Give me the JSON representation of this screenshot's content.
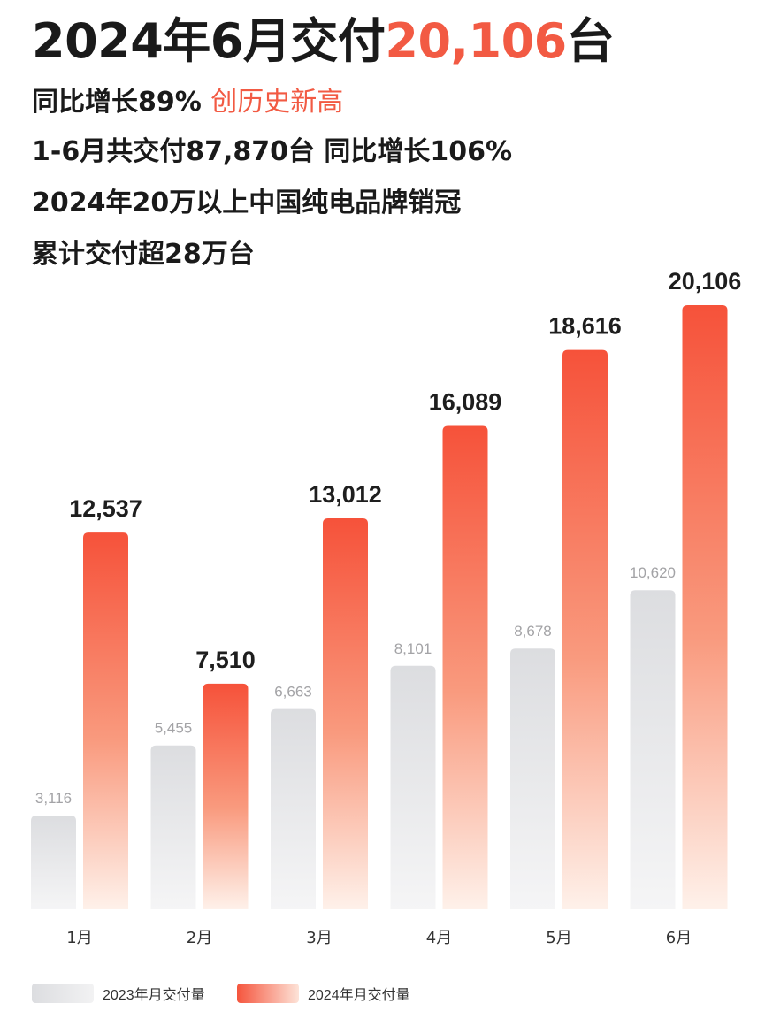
{
  "header": {
    "title_pre": "2024年6月交付",
    "title_highlight": "20,106",
    "title_post": "台",
    "line1_main": "同比增长89%",
    "line1_highlight": "创历史新高",
    "line2": "1-6月共交付87,870台 同比增长106%",
    "line3": "2024年20万以上中国纯电品牌销冠",
    "line4": "累计交付超28万台"
  },
  "colors": {
    "accent": "#f25a43",
    "bar_2024_top": "#f6523a",
    "bar_2024_bottom": "#fef1ea",
    "bar_2023_top": "#dcdde0",
    "bar_2023_bottom": "#f5f5f6"
  },
  "chart_data": {
    "type": "bar",
    "categories": [
      "1月",
      "2月",
      "3月",
      "4月",
      "5月",
      "6月"
    ],
    "series": [
      {
        "name": "2023年月交付量",
        "values": [
          3116,
          5455,
          6663,
          8101,
          8678,
          10620
        ],
        "labels": [
          "3,116",
          "5,455",
          "6,663",
          "8,101",
          "8,678",
          "10,620"
        ]
      },
      {
        "name": "2024年月交付量",
        "values": [
          12537,
          7510,
          13012,
          16089,
          18616,
          20106
        ],
        "labels": [
          "12,537",
          "7,510",
          "13,012",
          "16,089",
          "18,616",
          "20,106"
        ]
      }
    ],
    "grid": false,
    "legend_position": "bottom-left"
  }
}
